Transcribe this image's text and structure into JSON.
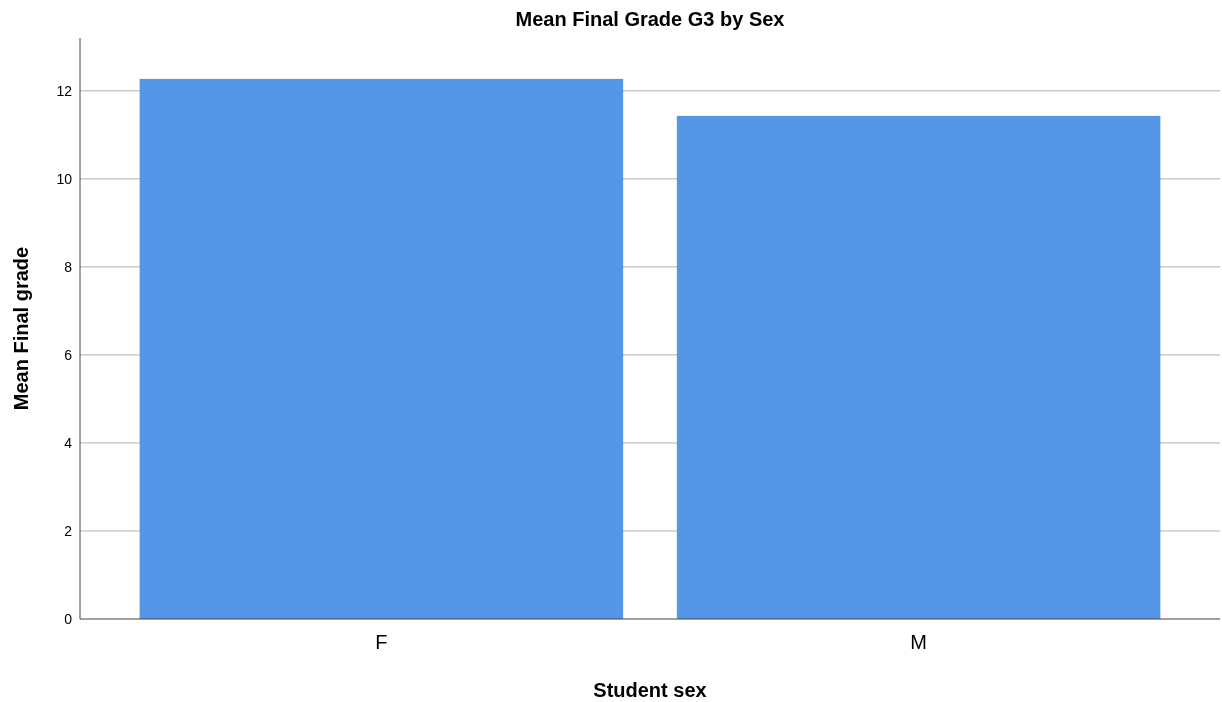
{
  "chart_data": {
    "type": "bar",
    "title": "Mean Final Grade G3 by Sex",
    "xlabel": "Student sex",
    "ylabel": "Mean Final grade",
    "categories": [
      "F",
      "M"
    ],
    "values": [
      12.27,
      11.43
    ],
    "color": "#5596e6",
    "ylim": [
      0,
      13.2
    ],
    "yticks": [
      0,
      2,
      4,
      6,
      8,
      10,
      12
    ],
    "grid": "y"
  }
}
